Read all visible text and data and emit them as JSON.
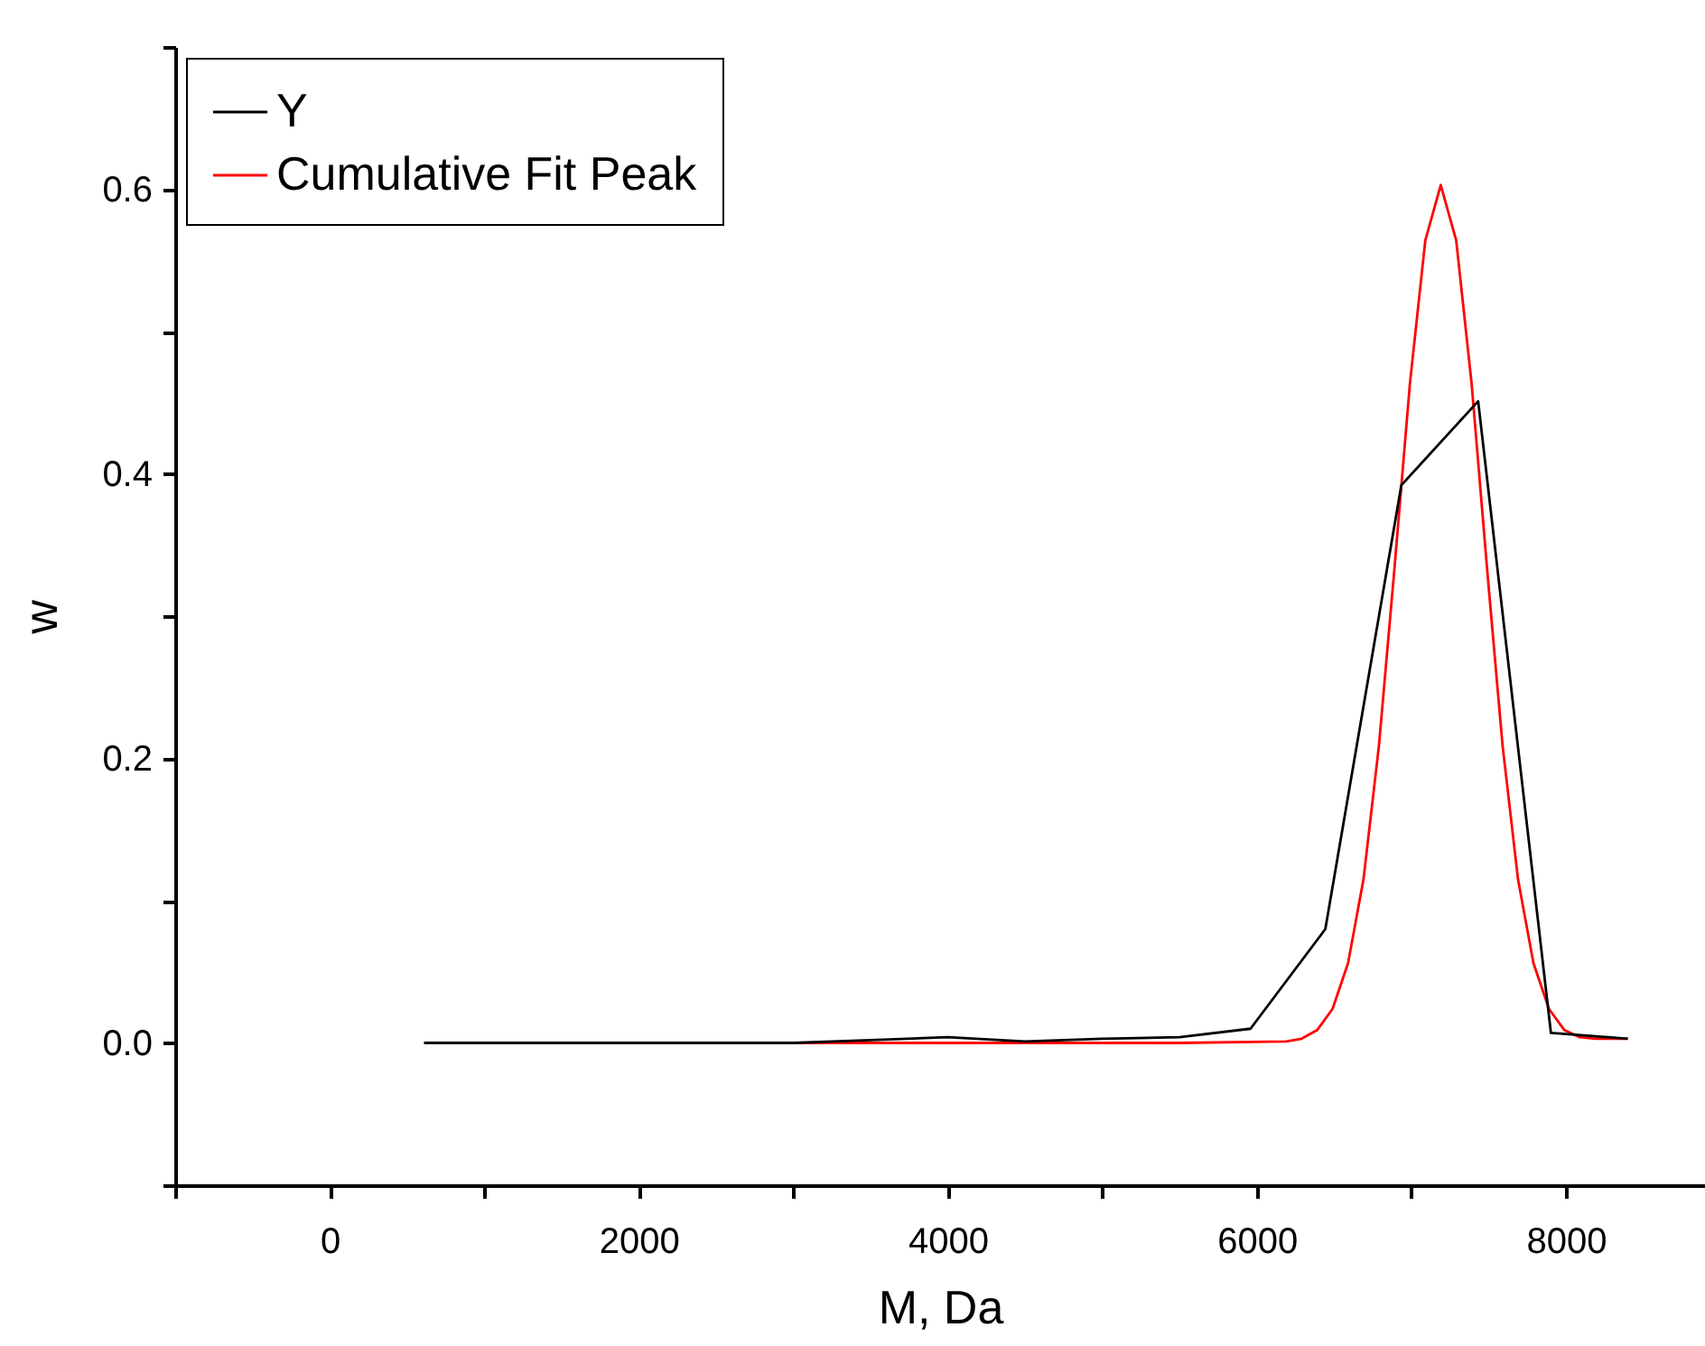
{
  "chart_data": {
    "type": "line",
    "xlabel": "M, Da",
    "ylabel": "w",
    "xlim": [
      -1000,
      8900
    ],
    "ylim": [
      -0.1,
      0.7
    ],
    "xticks": [
      {
        "value": -1000,
        "label": null
      },
      0,
      {
        "value": 1000,
        "label": null
      },
      2000,
      {
        "value": 3000,
        "label": null
      },
      4000,
      {
        "value": 5000,
        "label": null
      },
      6000,
      {
        "value": 7000,
        "label": null
      },
      8000
    ],
    "yticks": [
      {
        "value": -0.1,
        "label": null
      },
      {
        "value": 0,
        "label": "0.0"
      },
      {
        "value": 0.1,
        "label": null
      },
      0.2,
      {
        "value": 0.3,
        "label": null
      },
      0.4,
      {
        "value": 0.5,
        "label": null
      },
      0.6,
      {
        "value": 0.7,
        "label": null
      }
    ],
    "legend": "top left",
    "line_style": "solid",
    "marker": "none",
    "series": [
      {
        "name": "Y",
        "color": "#000000",
        "x": [
          611,
          1100,
          1600,
          2100,
          2600,
          3000,
          3500,
          4000,
          4500,
          5000,
          5500,
          5959,
          6443,
          6935,
          7432,
          7903,
          8400
        ],
        "values": [
          0,
          0,
          0,
          0,
          0,
          0,
          0.002,
          0.004,
          0.001,
          0.003,
          0.004,
          0.01,
          0.08,
          0.392,
          0.451,
          0.007,
          0.003
        ]
      },
      {
        "name": "Cumulative Fit Peak",
        "color": "#ff0000",
        "x": [
          611,
          2000,
          4000,
          5500,
          6190,
          6290,
          6390,
          6490,
          6590,
          6690,
          6790,
          6890,
          6990,
          7090,
          7190,
          7290,
          7390,
          7490,
          7590,
          7690,
          7790,
          7890,
          7990,
          8090,
          8190,
          8300,
          8400
        ],
        "values": [
          0,
          0,
          0,
          0,
          0.001,
          0.003,
          0.009,
          0.024,
          0.056,
          0.115,
          0.209,
          0.333,
          0.463,
          0.564,
          0.603,
          0.564,
          0.463,
          0.333,
          0.209,
          0.115,
          0.056,
          0.024,
          0.009,
          0.004,
          0.003,
          0.003,
          0.003
        ]
      }
    ]
  }
}
